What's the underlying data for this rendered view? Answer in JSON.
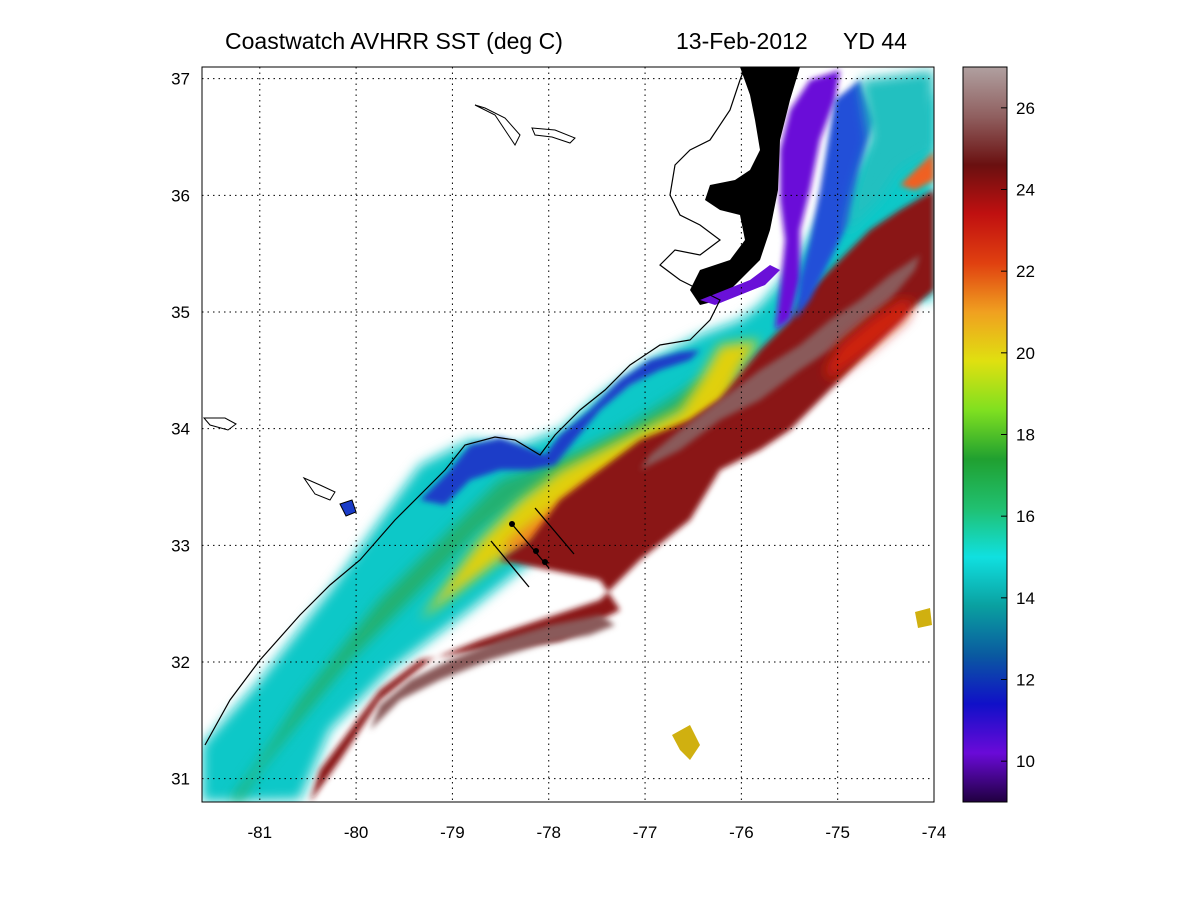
{
  "title": {
    "main": "Coastwatch   AVHRR   SST  (deg C)",
    "date": "13-Feb-2012",
    "yearday": "YD 44"
  },
  "map": {
    "lon_ticks": [
      "-81",
      "-80",
      "-79",
      "-78",
      "-77",
      "-76",
      "-75",
      "-74"
    ],
    "lat_ticks": [
      "37",
      "36",
      "35",
      "34",
      "33",
      "32",
      "31"
    ],
    "lon_range": [
      -81.6,
      -74
    ],
    "lat_range": [
      30.8,
      37.1
    ],
    "grid": "dotted"
  },
  "colorbar": {
    "ticks": [
      "26",
      "24",
      "22",
      "20",
      "18",
      "16",
      "14",
      "12",
      "10"
    ],
    "range": [
      9,
      27
    ],
    "colors": [
      "#200040",
      "#6a0ad8",
      "#1010c8",
      "#0a5aa0",
      "#0aa0a0",
      "#10e0e0",
      "#20c070",
      "#20a030",
      "#80e020",
      "#e0e010",
      "#f0a020",
      "#e04010",
      "#c01010",
      "#6a1010",
      "#906060",
      "#b0a0a0"
    ]
  },
  "legend_colors": {
    "land": "#000000",
    "cold_shelf": "#2050d0",
    "gulf_stream": "#8a1515",
    "warm_core": "#8a5a5a"
  }
}
